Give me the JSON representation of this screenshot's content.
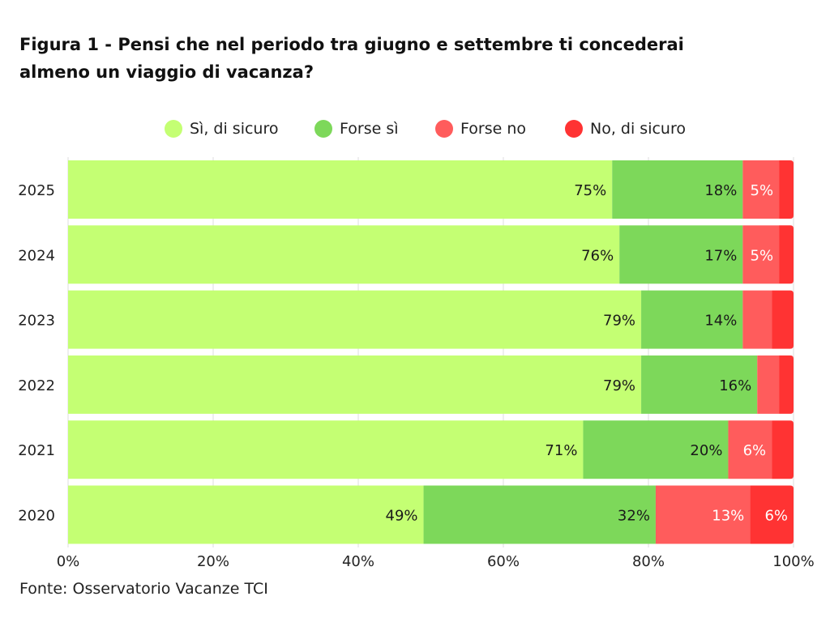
{
  "title_lines": [
    "Figura 1 - Pensi che nel periodo tra giugno e settembre ti concederai",
    "almeno un viaggio di vacanza?"
  ],
  "source": "Fonte: Osservatorio Vacanze TCI",
  "colors": {
    "si_di_sicuro": "#c4ff73",
    "forse_si": "#7dd85a",
    "forse_no": "#ff5c5c",
    "no_di_sicuro": "#ff3333",
    "grid": "#dddddd",
    "label_dark": "#1a1a1a",
    "label_light": "#ffffff"
  },
  "chart_data": {
    "type": "bar",
    "orientation": "horizontal",
    "stacked": true,
    "categories": [
      "2025",
      "2024",
      "2023",
      "2022",
      "2021",
      "2020"
    ],
    "series": [
      {
        "name": "Sì, di sicuro",
        "values": [
          75,
          76,
          79,
          79,
          71,
          49
        ],
        "labels": [
          "75%",
          "76%",
          "79%",
          "79%",
          "71%",
          "49%"
        ],
        "color_key": "si_di_sicuro",
        "label_color": "label_dark"
      },
      {
        "name": "Forse sì",
        "values": [
          18,
          17,
          14,
          16,
          20,
          32
        ],
        "labels": [
          "18%",
          "17%",
          "14%",
          "16%",
          "20%",
          "32%"
        ],
        "color_key": "forse_si",
        "label_color": "label_dark"
      },
      {
        "name": "Forse no",
        "values": [
          5,
          5,
          4,
          3,
          6,
          13
        ],
        "labels": [
          "5%",
          "5%",
          "",
          "",
          "6%",
          "13%"
        ],
        "color_key": "forse_no",
        "label_color": "label_light"
      },
      {
        "name": "No, di sicuro",
        "values": [
          2,
          2,
          3,
          2,
          3,
          6
        ],
        "labels": [
          "",
          "",
          "",
          "",
          "",
          "6%"
        ],
        "color_key": "no_di_sicuro",
        "label_color": "label_light"
      }
    ],
    "xlim": [
      0,
      100
    ],
    "xticks": [
      "0%",
      "20%",
      "40%",
      "60%",
      "80%",
      "100%"
    ],
    "grid": true,
    "legend_position": "top"
  }
}
